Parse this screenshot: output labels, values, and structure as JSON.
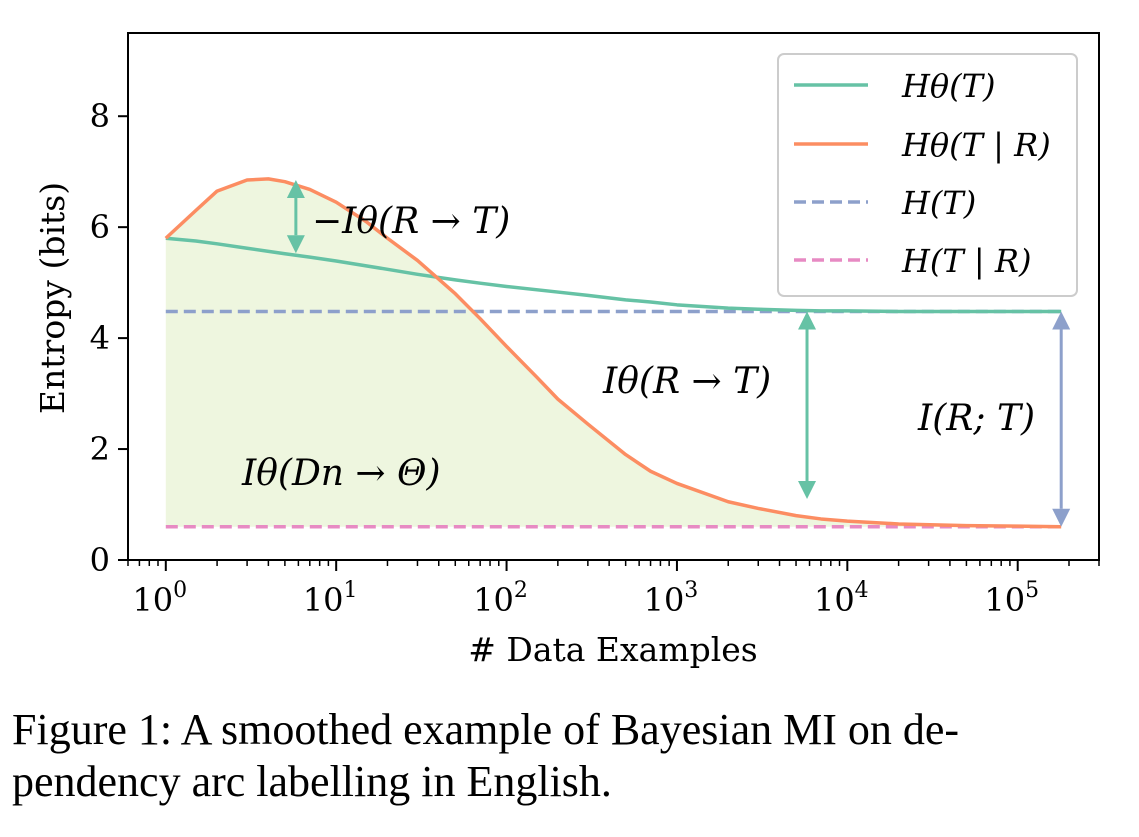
{
  "chart_data": {
    "type": "line",
    "xlabel": "# Data Examples",
    "ylabel": "Entropy (bits)",
    "xscale": "log",
    "xlim": [
      0.6,
      300000
    ],
    "ylim": [
      0,
      9.5
    ],
    "x_ticks": [
      {
        "value": 1,
        "base": "10",
        "exp": "0"
      },
      {
        "value": 10,
        "base": "10",
        "exp": "1"
      },
      {
        "value": 100,
        "base": "10",
        "exp": "2"
      },
      {
        "value": 1000,
        "base": "10",
        "exp": "3"
      },
      {
        "value": 10000,
        "base": "10",
        "exp": "4"
      },
      {
        "value": 100000,
        "base": "10",
        "exp": "5"
      }
    ],
    "y_ticks": [
      0,
      2,
      4,
      6,
      8
    ],
    "grid": false,
    "legend_position": "top-right",
    "series": [
      {
        "name": "Hθ(T)",
        "style": "solid",
        "color": "#66c2a5",
        "x": [
          1,
          1.5,
          2,
          3,
          5,
          7,
          10,
          20,
          30,
          50,
          70,
          100,
          200,
          300,
          500,
          700,
          1000,
          2000,
          3000,
          5000,
          7000,
          10000,
          20000,
          50000,
          100000,
          180000
        ],
        "y": [
          5.8,
          5.75,
          5.7,
          5.62,
          5.52,
          5.46,
          5.39,
          5.24,
          5.15,
          5.05,
          4.99,
          4.93,
          4.83,
          4.77,
          4.69,
          4.65,
          4.6,
          4.54,
          4.52,
          4.5,
          4.49,
          4.49,
          4.48,
          4.48,
          4.48,
          4.48
        ]
      },
      {
        "name": "Hθ(T | R)",
        "style": "solid",
        "color": "#fc8d62",
        "x": [
          1,
          1.5,
          2,
          3,
          4,
          5,
          7,
          10,
          15,
          20,
          30,
          50,
          70,
          100,
          150,
          200,
          300,
          500,
          700,
          1000,
          2000,
          3000,
          5000,
          7000,
          10000,
          20000,
          50000,
          100000,
          180000
        ],
        "y": [
          5.8,
          6.3,
          6.65,
          6.85,
          6.87,
          6.82,
          6.68,
          6.45,
          6.1,
          5.8,
          5.4,
          4.8,
          4.35,
          3.85,
          3.3,
          2.9,
          2.45,
          1.9,
          1.6,
          1.38,
          1.05,
          0.93,
          0.8,
          0.74,
          0.7,
          0.65,
          0.62,
          0.61,
          0.6
        ]
      },
      {
        "name": "H(T)",
        "style": "dashed",
        "color": "#8da0cb",
        "x": [
          1,
          180000
        ],
        "y": [
          4.48,
          4.48
        ]
      },
      {
        "name": "H(T | R)",
        "style": "dashed",
        "color": "#e78ac3",
        "x": [
          1,
          180000
        ],
        "y": [
          0.6,
          0.6
        ]
      }
    ],
    "fill_color": "#eef6df",
    "annotations": [
      {
        "id": "neg-mi-label",
        "text": "−Iθ(R → T)"
      },
      {
        "id": "mi-label",
        "text": "Iθ(R → T)"
      },
      {
        "id": "true-mi-label",
        "text": "I(R; T)"
      },
      {
        "id": "data-mi-label",
        "text": "Iθ(Dn → Θ)"
      }
    ],
    "arrows": [
      {
        "name": "neg-mi-arrow",
        "x": 5.8,
        "y_from": 6.85,
        "y_to": 5.53,
        "color": "#66c2a5"
      },
      {
        "name": "mi-arrow",
        "x": 5800,
        "y_from": 4.48,
        "y_to": 1.1,
        "color": "#66c2a5"
      },
      {
        "name": "true-mi-arrow",
        "x": 180000,
        "y_from": 4.48,
        "y_to": 0.6,
        "color": "#8da0cb"
      }
    ]
  },
  "caption": {
    "line1": "Figure 1: A smoothed example of Bayesian MI on de-",
    "line2": "pendency arc labelling in English."
  }
}
